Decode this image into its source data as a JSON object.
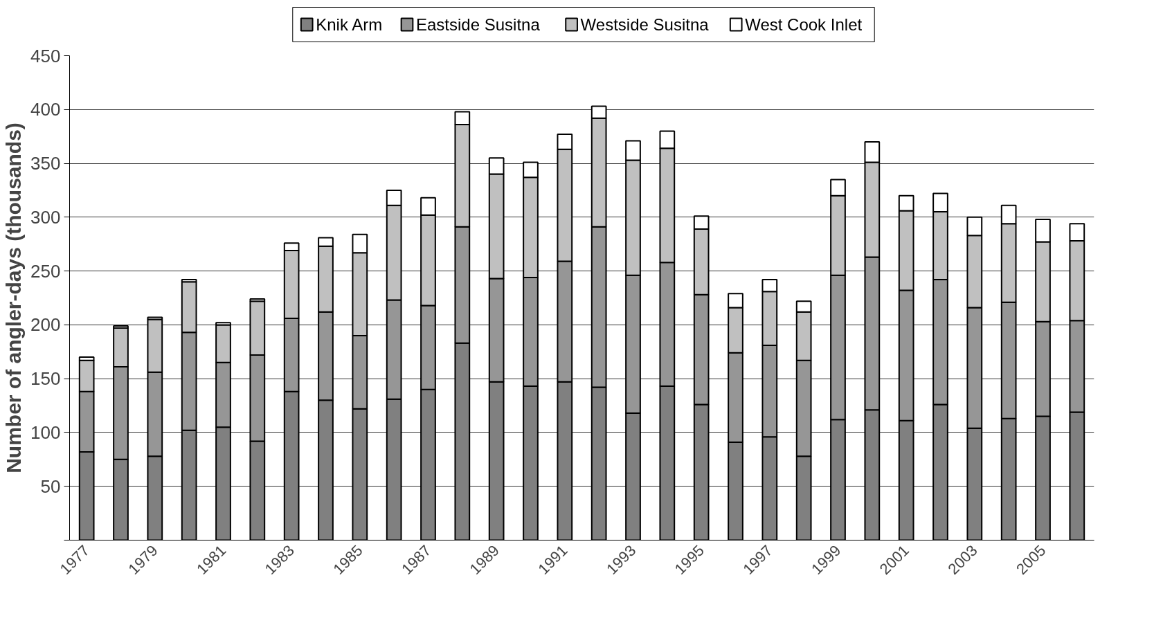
{
  "chart_data": {
    "type": "bar",
    "stacked": true,
    "ylabel": "Number of angler-days (thousands)",
    "categories": [
      "1977",
      null,
      "1979",
      null,
      "1981",
      null,
      "1983",
      null,
      "1985",
      null,
      "1987",
      null,
      "1989",
      null,
      "1991",
      null,
      "1993",
      null,
      "1995",
      null,
      "1997",
      null,
      "1999",
      null,
      "2001",
      null,
      "2003",
      null,
      "2005",
      null
    ],
    "series": [
      {
        "name": "Knik Arm",
        "color": "#808080",
        "values": [
          82,
          75,
          78,
          102,
          105,
          92,
          138,
          130,
          122,
          131,
          140,
          183,
          147,
          143,
          147,
          142,
          118,
          143,
          126,
          91,
          96,
          78,
          112,
          121,
          111,
          126,
          104,
          113,
          115,
          119
        ]
      },
      {
        "name": "Eastside Susitna",
        "color": "#969696",
        "values": [
          56,
          86,
          78,
          91,
          60,
          80,
          68,
          82,
          68,
          92,
          78,
          108,
          96,
          101,
          112,
          149,
          128,
          115,
          102,
          83,
          85,
          89,
          134,
          142,
          121,
          116,
          112,
          108,
          88,
          85
        ]
      },
      {
        "name": "Westside Susitna",
        "color": "#c0c0c0",
        "values": [
          29,
          36,
          49,
          47,
          35,
          50,
          63,
          61,
          77,
          88,
          84,
          95,
          97,
          93,
          104,
          101,
          107,
          106,
          61,
          42,
          50,
          45,
          74,
          88,
          74,
          63,
          67,
          73,
          74,
          74
        ]
      },
      {
        "name": "West Cook Inlet",
        "color": "#ffffff",
        "values": [
          3,
          2,
          2,
          2,
          2,
          2,
          7,
          8,
          17,
          14,
          16,
          12,
          15,
          14,
          14,
          11,
          18,
          16,
          12,
          13,
          11,
          10,
          15,
          19,
          14,
          17,
          17,
          17,
          21,
          16
        ]
      }
    ],
    "ylim": [
      0,
      450
    ],
    "yticks": [
      {
        "value": 0,
        "label": null
      },
      50,
      100,
      150,
      200,
      250,
      300,
      350,
      400,
      450
    ],
    "grid": "y",
    "legend": "top"
  }
}
